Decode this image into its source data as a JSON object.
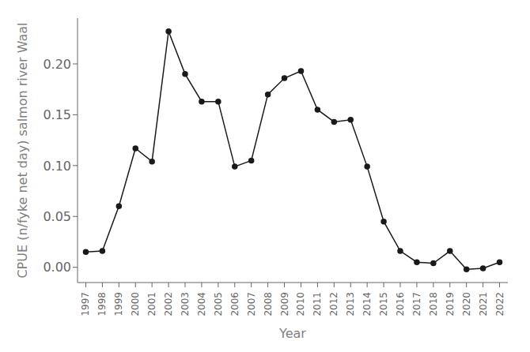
{
  "chart_data": {
    "type": "line",
    "x": [
      1997,
      1998,
      1999,
      2000,
      2001,
      2002,
      2003,
      2004,
      2005,
      2006,
      2007,
      2008,
      2009,
      2010,
      2011,
      2012,
      2013,
      2014,
      2015,
      2016,
      2017,
      2018,
      2019,
      2020,
      2021,
      2022
    ],
    "values": [
      0.015,
      0.016,
      0.06,
      0.117,
      0.104,
      0.232,
      0.19,
      0.163,
      0.163,
      0.099,
      0.105,
      0.17,
      0.186,
      0.193,
      0.155,
      0.143,
      0.145,
      0.099,
      0.045,
      0.016,
      0.005,
      0.004,
      0.016,
      -0.002,
      -0.001,
      0.005
    ],
    "xlabel": "Year",
    "ylabel": "CPUE (n/fyke net day) salmon river Waal",
    "color": "#1a1a1a",
    "marker": "circle",
    "xlim": [
      1996.5,
      2022.5
    ],
    "xticks": [
      1997,
      1998,
      1999,
      2000,
      2001,
      2002,
      2003,
      2004,
      2005,
      2006,
      2007,
      2008,
      2009,
      2010,
      2011,
      2012,
      2013,
      2014,
      2015,
      2016,
      2017,
      2018,
      2019,
      2020,
      2021,
      2022
    ],
    "ylim": [
      -0.015,
      0.245
    ],
    "yticks": [
      {
        "value": 0.0,
        "label": "0.00"
      },
      0.05,
      {
        "value": 0.1,
        "label": "0.10"
      },
      0.15,
      {
        "value": 0.2,
        "label": "0.20"
      }
    ],
    "grid": false
  }
}
